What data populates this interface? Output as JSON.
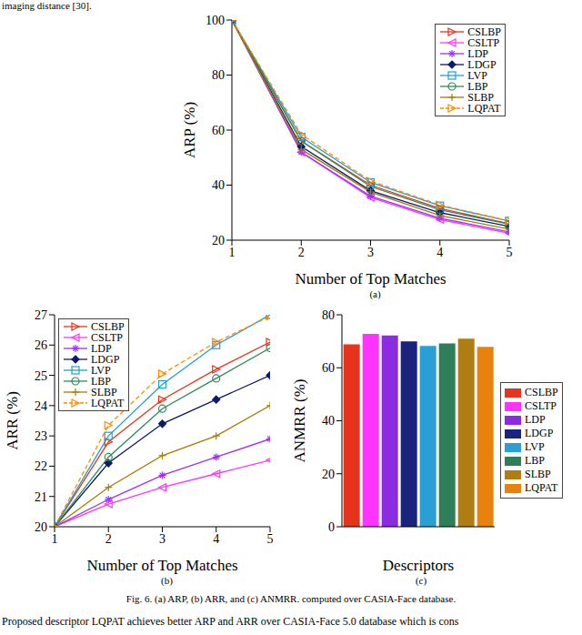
{
  "text_above": "imaging distance [30].",
  "caption": "Fig. 6. (a) ARP, (b) ARR, and (c) ANMRR. computed over CASIA-Face database.",
  "text_below": "Proposed descriptor LQPAT achieves better ARP and ARR over CASIA-Face 5.0 database which is cons",
  "chart_data": [
    {
      "type": "line",
      "subtitle": "(a)",
      "x_label": "Number of Top Matches",
      "y_label": "ARP (%)",
      "x": [
        1,
        2,
        3,
        4,
        5
      ],
      "xlim": [
        1,
        5
      ],
      "xticks": [
        1,
        2,
        3,
        4,
        5
      ],
      "ylim": [
        20,
        100
      ],
      "yticks": [
        20,
        40,
        60,
        80,
        100
      ],
      "grid": false,
      "legend": "upper right",
      "series": [
        {
          "name": "CSLBP",
          "color": "#e8331c",
          "marker": "triangle-right",
          "line_style": "solid",
          "values": [
            100,
            56,
            40,
            31.5,
            26
          ]
        },
        {
          "name": "CSLTP",
          "color": "#ff33ff",
          "marker": "triangle-left",
          "line_style": "solid",
          "values": [
            100,
            52,
            35.5,
            27.5,
            22.5
          ]
        },
        {
          "name": "LDP",
          "color": "#9b30ff",
          "marker": "star",
          "line_style": "solid",
          "values": [
            100,
            52,
            36,
            28,
            23
          ]
        },
        {
          "name": "LDGP",
          "color": "#0a1a6e",
          "marker": "diamond",
          "line_style": "solid",
          "values": [
            100,
            54,
            38,
            30,
            25
          ]
        },
        {
          "name": "LVP",
          "color": "#1e9fd8",
          "marker": "square",
          "line_style": "solid",
          "values": [
            100,
            57.5,
            41,
            32.5,
            27
          ]
        },
        {
          "name": "LBP",
          "color": "#2e8b57",
          "marker": "circle",
          "line_style": "solid",
          "values": [
            100,
            56,
            39.5,
            31,
            25.8
          ]
        },
        {
          "name": "SLBP",
          "color": "#a67c00",
          "marker": "plus",
          "line_style": "solid",
          "values": [
            100,
            53,
            37.5,
            29,
            24
          ]
        },
        {
          "name": "LQPAT",
          "color": "#ff8c00",
          "marker": "triangle-right",
          "line_style": "dashed",
          "values": [
            100,
            58.5,
            41.5,
            32.8,
            27
          ]
        }
      ]
    },
    {
      "type": "line",
      "subtitle": "(b)",
      "x_label": "Number of Top Matches",
      "y_label": "ARR (%)",
      "x": [
        1,
        2,
        3,
        4,
        5
      ],
      "xlim": [
        1,
        5
      ],
      "xticks": [
        1,
        2,
        3,
        4,
        5
      ],
      "ylim": [
        20,
        27
      ],
      "yticks": [
        20,
        21,
        22,
        23,
        24,
        25,
        26,
        27
      ],
      "grid": false,
      "legend": "upper left",
      "series": [
        {
          "name": "CSLBP",
          "color": "#e8331c",
          "marker": "triangle-right",
          "line_style": "solid",
          "values": [
            20,
            22.8,
            24.2,
            25.2,
            26.1
          ]
        },
        {
          "name": "CSLTP",
          "color": "#ff33ff",
          "marker": "triangle-left",
          "line_style": "solid",
          "values": [
            20,
            20.75,
            21.3,
            21.75,
            22.2
          ]
        },
        {
          "name": "LDP",
          "color": "#9b30ff",
          "marker": "star",
          "line_style": "solid",
          "values": [
            20,
            20.9,
            21.7,
            22.3,
            22.9
          ]
        },
        {
          "name": "LDGP",
          "color": "#0a1a6e",
          "marker": "diamond",
          "line_style": "solid",
          "values": [
            20,
            22.1,
            23.4,
            24.2,
            25
          ]
        },
        {
          "name": "LVP",
          "color": "#1e9fd8",
          "marker": "square",
          "line_style": "solid",
          "values": [
            20,
            23,
            24.7,
            26,
            27
          ]
        },
        {
          "name": "LBP",
          "color": "#2e8b57",
          "marker": "circle",
          "line_style": "solid",
          "values": [
            20,
            22.3,
            23.9,
            24.9,
            25.9
          ]
        },
        {
          "name": "SLBP",
          "color": "#a67c00",
          "marker": "plus",
          "line_style": "solid",
          "values": [
            20,
            21.3,
            22.35,
            23,
            24
          ]
        },
        {
          "name": "LQPAT",
          "color": "#ff8c00",
          "marker": "triangle-right",
          "line_style": "dashed",
          "values": [
            20,
            23.35,
            25.05,
            26.1,
            26.95
          ]
        }
      ]
    },
    {
      "type": "bar",
      "subtitle": "(c)",
      "x_label": "Descriptors",
      "y_label": "ANMRR (%)",
      "categories": [
        "CSLBP",
        "CSLTP",
        "LDP",
        "LDGP",
        "LVP",
        "LBP",
        "SLBP",
        "LQPAT"
      ],
      "values": [
        68.8,
        72.8,
        72.2,
        70,
        68.2,
        69.2,
        71,
        67.9
      ],
      "colors": [
        "#e8331c",
        "#ff33ff",
        "#8b2be2",
        "#1a237e",
        "#2a9fd6",
        "#2e7d5b",
        "#b07d12",
        "#e8820c"
      ],
      "ylim": [
        0,
        80
      ],
      "yticks": [
        0,
        20,
        40,
        60,
        80
      ],
      "grid": false,
      "legend": "right",
      "tick_labels": "y"
    }
  ]
}
